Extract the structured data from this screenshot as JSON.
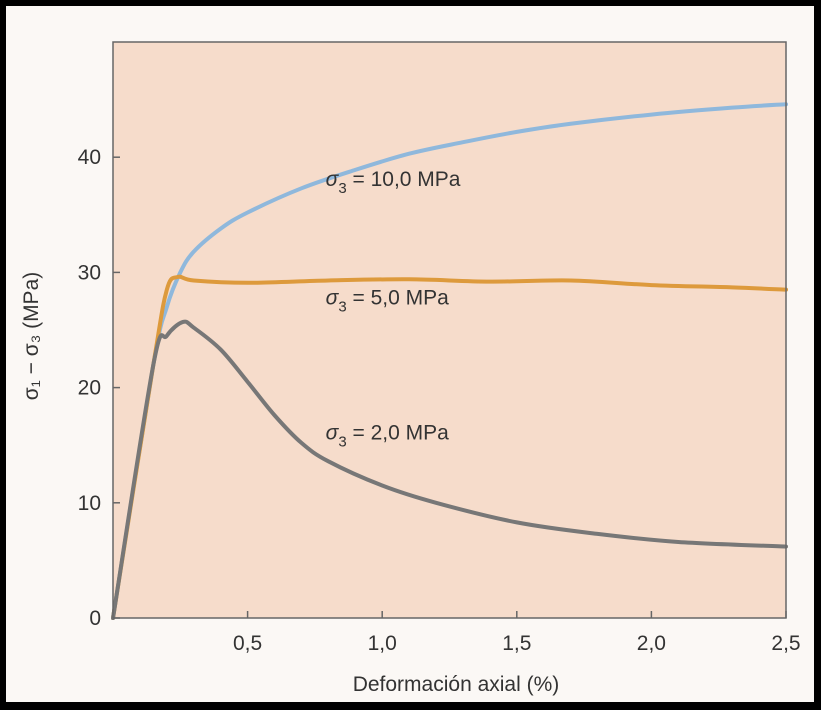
{
  "chart_data": {
    "type": "line",
    "title": "",
    "xlabel": "Deformación axial (%)",
    "ylabel": "σ₁ − σ₃ (MPa)",
    "xlim": [
      0,
      2.5
    ],
    "ylim": [
      0,
      50
    ],
    "xticks": [
      {
        "value": 0.5,
        "label": "0,5"
      },
      {
        "value": 1.0,
        "label": "1,0"
      },
      {
        "value": 1.5,
        "label": "1,5"
      },
      {
        "value": 2.0,
        "label": "2,0"
      },
      {
        "value": 2.5,
        "label": "2,5"
      }
    ],
    "yticks": [
      {
        "value": 0,
        "label": "0"
      },
      {
        "value": 10,
        "label": "10"
      },
      {
        "value": 20,
        "label": "20"
      },
      {
        "value": 30,
        "label": "30"
      },
      {
        "value": 40,
        "label": "40"
      }
    ],
    "grid": false,
    "legend": "none",
    "background_color": "#f6dccb",
    "series": [
      {
        "name": "σ₃ = 10,0 MPa",
        "color": "#8fb8dc",
        "x": [
          0,
          0.15,
          0.2,
          0.25,
          0.3,
          0.4,
          0.5,
          0.7,
          0.9,
          1.1,
          1.3,
          1.5,
          1.7,
          2.0,
          2.3,
          2.5
        ],
        "y": [
          0,
          22,
          27,
          30,
          31.8,
          33.8,
          35.2,
          37.3,
          38.9,
          40.3,
          41.3,
          42.2,
          42.9,
          43.7,
          44.3,
          44.6
        ]
      },
      {
        "name": "σ₃ = 5,0 MPa",
        "color": "#dd9a3c",
        "x": [
          0,
          0.15,
          0.2,
          0.24,
          0.3,
          0.5,
          0.8,
          1.1,
          1.4,
          1.7,
          2.0,
          2.3,
          2.5
        ],
        "y": [
          0,
          22,
          28.5,
          29.6,
          29.3,
          29.1,
          29.3,
          29.4,
          29.2,
          29.3,
          28.9,
          28.7,
          28.5
        ]
      },
      {
        "name": "σ₃ = 2,0 MPa",
        "color": "#777777",
        "x": [
          0,
          0.15,
          0.2,
          0.26,
          0.3,
          0.4,
          0.5,
          0.6,
          0.7,
          0.8,
          1.0,
          1.2,
          1.5,
          1.8,
          2.1,
          2.5
        ],
        "y": [
          0,
          22,
          24.5,
          25.7,
          25.2,
          23.3,
          20.5,
          17.6,
          15.2,
          13.6,
          11.5,
          10.0,
          8.3,
          7.3,
          6.6,
          6.2
        ]
      }
    ],
    "annotations": [
      {
        "base": "σ",
        "sub": "3",
        "rest": " = 10,0 MPa",
        "x": 0.79,
        "y": 37.5
      },
      {
        "base": "σ",
        "sub": "3",
        "rest": " = 5,0 MPa",
        "x": 0.79,
        "y": 27.2
      },
      {
        "base": "σ",
        "sub": "3",
        "rest": " = 2,0 MPa",
        "x": 0.79,
        "y": 15.5
      }
    ]
  }
}
